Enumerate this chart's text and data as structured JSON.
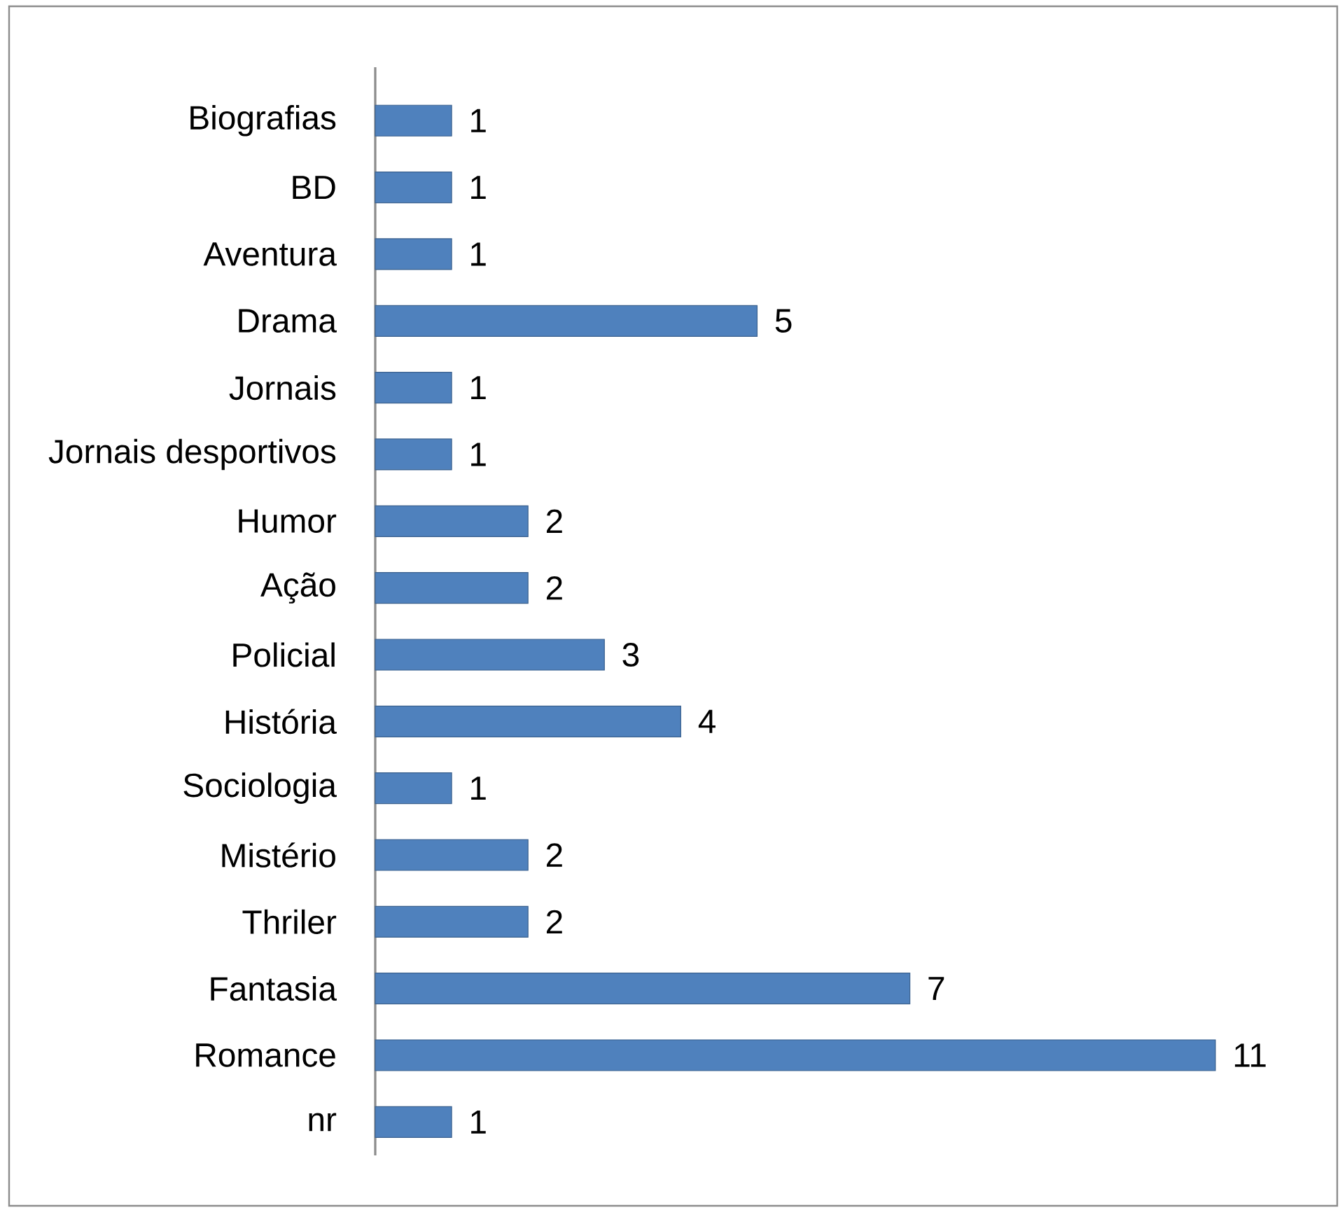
{
  "chart_data": {
    "type": "bar",
    "orientation": "horizontal",
    "categories": [
      "Biografias",
      "BD",
      "Aventura",
      "Drama",
      "Jornais",
      "Jornais desportivos",
      "Humor",
      "Ação",
      "Policial",
      "História",
      "Sociologia",
      "Mistério",
      "Thriler",
      "Fantasia",
      "Romance",
      "nr"
    ],
    "values": [
      1,
      1,
      1,
      5,
      1,
      1,
      2,
      2,
      3,
      4,
      1,
      2,
      2,
      7,
      11,
      1
    ],
    "color": "#4f81bd",
    "data_labels": true
  }
}
